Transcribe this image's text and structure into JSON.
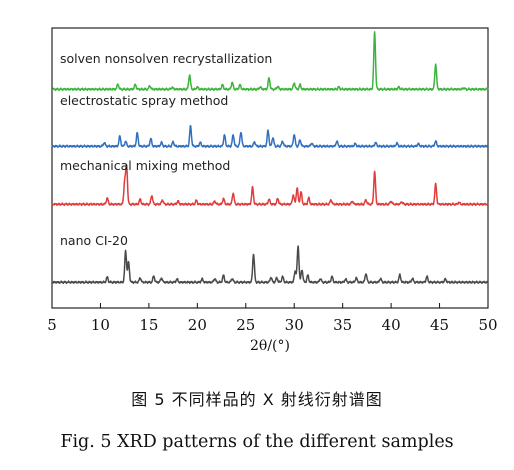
{
  "chart_data": {
    "type": "line",
    "xlabel": "2θ/(°)",
    "xlim": [
      5,
      50
    ],
    "x_ticks": [
      5,
      10,
      15,
      20,
      25,
      30,
      35,
      40,
      45,
      50
    ],
    "ylabel": "",
    "grid": false,
    "series": [
      {
        "name": "solven nonsolven recrystallization",
        "color": "#3cb43c",
        "peaks": [
          [
            11.8,
            0.8
          ],
          [
            13.6,
            0.75
          ],
          [
            15.1,
            0.55
          ],
          [
            17.4,
            0.3
          ],
          [
            19.2,
            2.3
          ],
          [
            20.0,
            0.35
          ],
          [
            22.6,
            0.7
          ],
          [
            23.6,
            1.1
          ],
          [
            24.4,
            0.7
          ],
          [
            26.5,
            0.35
          ],
          [
            27.4,
            1.8
          ],
          [
            28.3,
            0.45
          ],
          [
            30.0,
            1.0
          ],
          [
            30.6,
            0.7
          ],
          [
            34.6,
            0.35
          ],
          [
            38.3,
            9.0
          ],
          [
            40.8,
            0.35
          ],
          [
            44.6,
            4.0
          ],
          [
            47.5,
            0.2
          ]
        ]
      },
      {
        "name": "electrostatic spray method",
        "color": "#3070c0",
        "peaks": [
          [
            10.4,
            0.6
          ],
          [
            12.0,
            1.6
          ],
          [
            12.6,
            0.8
          ],
          [
            13.8,
            2.1
          ],
          [
            15.2,
            1.2
          ],
          [
            16.3,
            0.6
          ],
          [
            17.5,
            0.7
          ],
          [
            19.3,
            3.2
          ],
          [
            20.3,
            0.6
          ],
          [
            22.8,
            1.8
          ],
          [
            23.7,
            1.8
          ],
          [
            24.5,
            2.3
          ],
          [
            25.9,
            0.7
          ],
          [
            27.3,
            2.5
          ],
          [
            27.8,
            1.4
          ],
          [
            28.8,
            0.8
          ],
          [
            30.0,
            1.9
          ],
          [
            30.6,
            1.0
          ],
          [
            31.8,
            0.5
          ],
          [
            34.4,
            0.8
          ],
          [
            36.3,
            0.4
          ],
          [
            38.4,
            0.6
          ],
          [
            40.6,
            0.5
          ],
          [
            42.8,
            0.4
          ],
          [
            44.6,
            0.8
          ]
        ]
      },
      {
        "name": "mechanical mixing method",
        "color": "#e03c3c",
        "peaks": [
          [
            10.7,
            1.0
          ],
          [
            12.5,
            3.5
          ],
          [
            12.7,
            6.0
          ],
          [
            14.1,
            0.8
          ],
          [
            15.3,
            1.4
          ],
          [
            16.4,
            0.7
          ],
          [
            18.0,
            0.5
          ],
          [
            19.9,
            0.6
          ],
          [
            21.8,
            0.5
          ],
          [
            22.7,
            0.9
          ],
          [
            23.7,
            1.8
          ],
          [
            25.7,
            2.7
          ],
          [
            27.4,
            0.8
          ],
          [
            28.3,
            0.9
          ],
          [
            29.9,
            1.5
          ],
          [
            30.3,
            2.6
          ],
          [
            30.7,
            2.0
          ],
          [
            31.5,
            1.0
          ],
          [
            33.8,
            0.7
          ],
          [
            36.0,
            0.5
          ],
          [
            37.4,
            0.7
          ],
          [
            38.3,
            5.2
          ],
          [
            40.0,
            0.5
          ],
          [
            41.1,
            0.4
          ],
          [
            44.6,
            3.2
          ],
          [
            47.0,
            0.3
          ]
        ]
      },
      {
        "name": "nano CI-20",
        "color": "#4a4a4a",
        "peaks": [
          [
            10.7,
            0.8
          ],
          [
            12.6,
            5.0
          ],
          [
            12.9,
            3.2
          ],
          [
            14.1,
            0.7
          ],
          [
            15.5,
            1.0
          ],
          [
            16.3,
            0.7
          ],
          [
            17.9,
            0.5
          ],
          [
            20.5,
            0.5
          ],
          [
            21.8,
            0.6
          ],
          [
            22.7,
            1.1
          ],
          [
            23.6,
            0.6
          ],
          [
            25.8,
            4.5
          ],
          [
            27.6,
            0.8
          ],
          [
            28.2,
            0.7
          ],
          [
            28.8,
            0.9
          ],
          [
            30.1,
            1.8
          ],
          [
            30.4,
            5.7
          ],
          [
            30.8,
            2.0
          ],
          [
            31.4,
            1.1
          ],
          [
            32.7,
            0.6
          ],
          [
            33.9,
            0.9
          ],
          [
            35.3,
            0.5
          ],
          [
            36.4,
            0.7
          ],
          [
            37.4,
            1.4
          ],
          [
            38.9,
            0.6
          ],
          [
            40.9,
            1.2
          ],
          [
            42.2,
            0.6
          ],
          [
            43.7,
            0.9
          ],
          [
            45.6,
            0.5
          ]
        ]
      }
    ]
  },
  "captions": {
    "cn": "图 5   不同样品的 X 射线衍射谱图",
    "en": "Fig. 5    XRD patterns of the different samples"
  }
}
